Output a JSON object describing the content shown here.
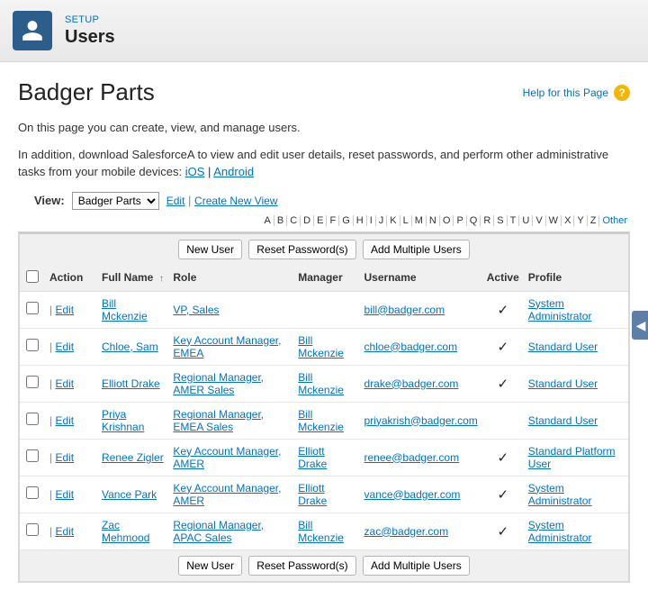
{
  "header": {
    "setup_label": "SETUP",
    "title": "Users"
  },
  "page": {
    "heading": "Badger Parts",
    "help_label": "Help for this Page",
    "intro": "On this page you can create, view, and manage users.",
    "download_prefix": "In addition, download SalesforceA to view and edit user details, reset passwords, and perform other administrative tasks from your mobile devices: ",
    "ios_label": "iOS",
    "android_label": "Android"
  },
  "view": {
    "label": "View:",
    "selected": "Badger Parts",
    "edit": "Edit",
    "create": "Create New View"
  },
  "alpha": [
    "A",
    "B",
    "C",
    "D",
    "E",
    "F",
    "G",
    "H",
    "I",
    "J",
    "K",
    "L",
    "M",
    "N",
    "O",
    "P",
    "Q",
    "R",
    "S",
    "T",
    "U",
    "V",
    "W",
    "X",
    "Y",
    "Z"
  ],
  "alpha_other": "Other",
  "buttons": {
    "new_user": "New User",
    "reset": "Reset Password(s)",
    "add_multiple": "Add Multiple Users"
  },
  "columns": {
    "action": "Action",
    "full_name": "Full Name",
    "role": "Role",
    "manager": "Manager",
    "username": "Username",
    "active": "Active",
    "profile": "Profile"
  },
  "edit_label": "Edit",
  "sort_indicator": "↑",
  "rows": [
    {
      "name": "Bill Mckenzie",
      "role": "VP, Sales",
      "manager": "",
      "username": "bill@badger.com",
      "active": true,
      "profile": "System Administrator"
    },
    {
      "name": "Chloe, Sam",
      "role": "Key Account Manager, EMEA",
      "manager": "Bill Mckenzie",
      "username": "chloe@badger.com",
      "active": true,
      "profile": "Standard User"
    },
    {
      "name": "Elliott Drake",
      "role": "Regional Manager, AMER Sales",
      "manager": "Bill Mckenzie",
      "username": "drake@badger.com",
      "active": true,
      "profile": "Standard User"
    },
    {
      "name": "Priya Krishnan",
      "role": "Regional Manager, EMEA Sales",
      "manager": "Bill Mckenzie",
      "username": "priyakrish@badger.com",
      "active": false,
      "profile": "Standard User"
    },
    {
      "name": "Renee Zigler",
      "role": "Key Account Manager, AMER",
      "manager": "Elliott Drake",
      "username": "renee@badger.com",
      "active": true,
      "profile": "Standard Platform User"
    },
    {
      "name": "Vance Park",
      "role": "Key Account Manager, AMER",
      "manager": "Elliott Drake",
      "username": "vance@badger.com",
      "active": true,
      "profile": "System Administrator"
    },
    {
      "name": "Zac Mehmood",
      "role": "Regional Manager, APAC Sales",
      "manager": "Bill Mckenzie",
      "username": "zac@badger.com",
      "active": true,
      "profile": "System Administrator"
    }
  ]
}
